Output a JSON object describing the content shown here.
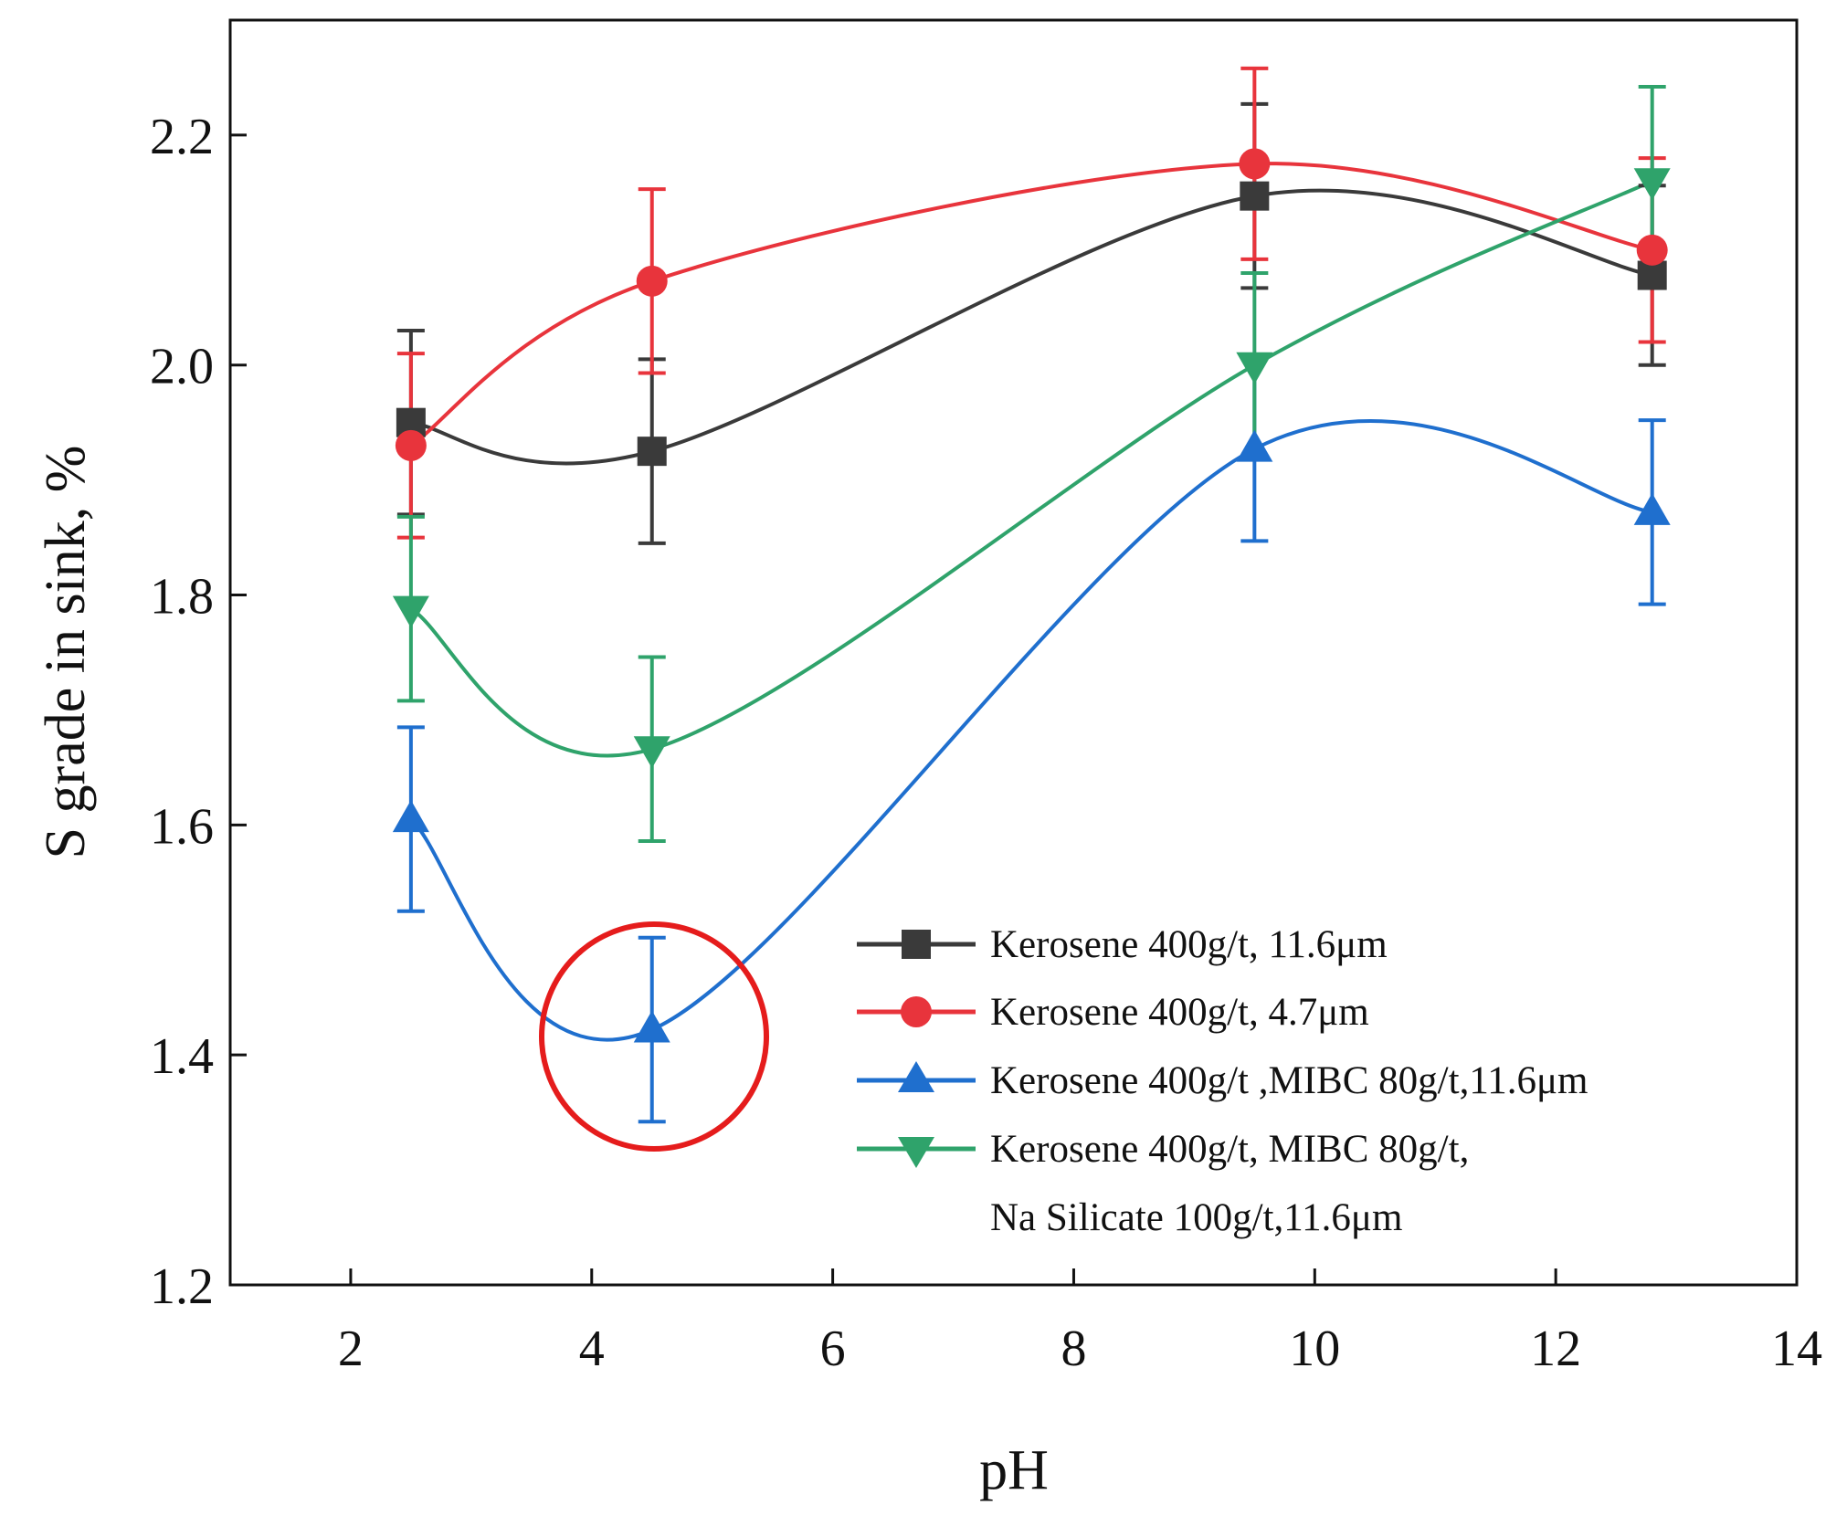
{
  "chart_data": {
    "type": "line",
    "title": "",
    "xlabel": "pH",
    "ylabel": "S grade in sink, %",
    "xlim": [
      1,
      14
    ],
    "ylim": [
      1.2,
      2.3
    ],
    "x_ticks": [
      2,
      4,
      6,
      8,
      10,
      12,
      14
    ],
    "x_tick_labels": [
      "2",
      "4",
      "6",
      "8",
      "10",
      "12",
      "14"
    ],
    "y_ticks": [
      1.2,
      1.4,
      1.6,
      1.8,
      2.0,
      2.2
    ],
    "y_tick_labels": [
      "1.2",
      "1.4",
      "1.6",
      "1.8",
      "2.0",
      "2.2"
    ],
    "grid": false,
    "legend_position": "bottom-right",
    "series": [
      {
        "name": "Kerosene 400g/t, 11.6μm",
        "marker": "square",
        "color": "#3a3a3a",
        "x": [
          2.5,
          4.5,
          9.5,
          12.8
        ],
        "y": [
          1.95,
          1.925,
          2.147,
          2.078
        ],
        "err": [
          0.08,
          0.08,
          0.08,
          0.078
        ]
      },
      {
        "name": "Kerosene 400g/t, 4.7μm",
        "marker": "circle",
        "color": "#e8343c",
        "x": [
          2.5,
          4.5,
          9.5,
          12.8
        ],
        "y": [
          1.93,
          2.073,
          2.175,
          2.1
        ],
        "err": [
          0.08,
          0.08,
          0.083,
          0.08
        ]
      },
      {
        "name": "Kerosene 400g/t ,MIBC 80g/t,11.6μm",
        "marker": "triangle-up",
        "color": "#1f6fce",
        "x": [
          2.5,
          4.5,
          9.5,
          12.8
        ],
        "y": [
          1.605,
          1.422,
          1.927,
          1.872
        ],
        "err": [
          0.08,
          0.08,
          0.08,
          0.08
        ]
      },
      {
        "name_lines": [
          "Kerosene 400g/t, MIBC 80g/t,",
          "Na Silicate 100g/t,11.6μm"
        ],
        "name": "Kerosene 400g/t, MIBC 80g/t, Na Silicate 100g/t,11.6μm",
        "marker": "triangle-down",
        "color": "#2fa36b",
        "x": [
          2.5,
          4.5,
          9.5,
          12.8
        ],
        "y": [
          1.788,
          1.666,
          2.0,
          2.16
        ],
        "err": [
          0.08,
          0.08,
          0.08,
          0.082
        ]
      }
    ],
    "annotations": [
      {
        "type": "circle",
        "color": "#e51c1c",
        "x": 4.5,
        "y": 1.415,
        "note": "highlight"
      }
    ]
  }
}
